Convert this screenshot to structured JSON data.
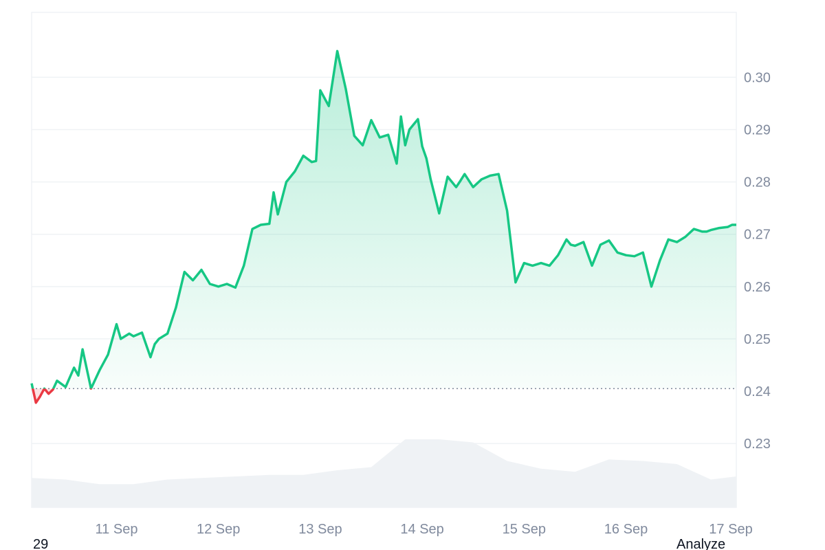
{
  "footer": {
    "left_text": "29",
    "analyze_label": "Analyze"
  },
  "colors": {
    "up_line": "#16c784",
    "down_line": "#ea3943",
    "grid": "#eff2f5",
    "axis_text": "#808a9d",
    "volume": "#eff2f5",
    "baseline": "#808a9d"
  },
  "chart_data": {
    "type": "area",
    "title": "",
    "xlabel": "",
    "ylabel": "",
    "x_tick_labels": [
      "11 Sep",
      "12 Sep",
      "13 Sep",
      "14 Sep",
      "15 Sep",
      "16 Sep",
      "17 Sep"
    ],
    "y_tick_labels": [
      "0.30",
      "0.29",
      "0.28",
      "0.27",
      "0.26",
      "0.25",
      "0.24",
      "0.23"
    ],
    "ylim": [
      0.2178,
      0.3124
    ],
    "xlim": [
      "2024-09-10T04:00",
      "2024-09-17T02:00"
    ],
    "grid": true,
    "baseline_value": 0.2405,
    "price_series": {
      "x": [
        "2024-09-10T04:00",
        "2024-09-10T05:00",
        "2024-09-10T06:00",
        "2024-09-10T07:00",
        "2024-09-10T08:00",
        "2024-09-10T09:00",
        "2024-09-10T10:00",
        "2024-09-10T12:00",
        "2024-09-10T14:00",
        "2024-09-10T15:00",
        "2024-09-10T16:00",
        "2024-09-10T18:00",
        "2024-09-10T20:00",
        "2024-09-10T22:00",
        "2024-09-11T00:00",
        "2024-09-11T01:00",
        "2024-09-11T03:00",
        "2024-09-11T04:00",
        "2024-09-11T06:00",
        "2024-09-11T08:00",
        "2024-09-11T09:00",
        "2024-09-11T10:00",
        "2024-09-11T12:00",
        "2024-09-11T14:00",
        "2024-09-11T16:00",
        "2024-09-11T18:00",
        "2024-09-11T19:00",
        "2024-09-11T20:00",
        "2024-09-11T22:00",
        "2024-09-12T00:00",
        "2024-09-12T02:00",
        "2024-09-12T04:00",
        "2024-09-12T06:00",
        "2024-09-12T08:00",
        "2024-09-12T10:00",
        "2024-09-12T12:00",
        "2024-09-12T13:00",
        "2024-09-12T14:00",
        "2024-09-12T16:00",
        "2024-09-12T18:00",
        "2024-09-12T20:00",
        "2024-09-12T22:00",
        "2024-09-12T23:00",
        "2024-09-13T00:00",
        "2024-09-13T02:00",
        "2024-09-13T04:00",
        "2024-09-13T06:00",
        "2024-09-13T08:00",
        "2024-09-13T10:00",
        "2024-09-13T12:00",
        "2024-09-13T14:00",
        "2024-09-13T16:00",
        "2024-09-13T18:00",
        "2024-09-13T19:00",
        "2024-09-13T20:00",
        "2024-09-13T21:00",
        "2024-09-13T22:00",
        "2024-09-13T23:00",
        "2024-09-14T00:00",
        "2024-09-14T01:00",
        "2024-09-14T02:00",
        "2024-09-14T04:00",
        "2024-09-14T06:00",
        "2024-09-14T08:00",
        "2024-09-14T09:00",
        "2024-09-14T10:00",
        "2024-09-14T12:00",
        "2024-09-14T14:00",
        "2024-09-14T16:00",
        "2024-09-14T18:00",
        "2024-09-14T20:00",
        "2024-09-14T22:00",
        "2024-09-15T00:00",
        "2024-09-15T02:00",
        "2024-09-15T04:00",
        "2024-09-15T06:00",
        "2024-09-15T08:00",
        "2024-09-15T10:00",
        "2024-09-15T11:00",
        "2024-09-15T12:00",
        "2024-09-15T14:00",
        "2024-09-15T16:00",
        "2024-09-15T18:00",
        "2024-09-15T20:00",
        "2024-09-15T22:00",
        "2024-09-16T00:00",
        "2024-09-16T02:00",
        "2024-09-16T04:00",
        "2024-09-16T06:00",
        "2024-09-16T08:00",
        "2024-09-16T10:00",
        "2024-09-16T12:00",
        "2024-09-16T14:00",
        "2024-09-16T16:00",
        "2024-09-16T18:00",
        "2024-09-16T19:00",
        "2024-09-16T20:00",
        "2024-09-16T22:00",
        "2024-09-17T00:00",
        "2024-09-17T01:00",
        "2024-09-17T02:00"
      ],
      "y": [
        0.2415,
        0.2378,
        0.239,
        0.2405,
        0.2395,
        0.2403,
        0.242,
        0.2408,
        0.2445,
        0.243,
        0.248,
        0.2405,
        0.244,
        0.247,
        0.2528,
        0.25,
        0.251,
        0.2505,
        0.2512,
        0.2465,
        0.249,
        0.25,
        0.251,
        0.256,
        0.2628,
        0.2612,
        0.2622,
        0.2632,
        0.2605,
        0.26,
        0.2605,
        0.2598,
        0.264,
        0.271,
        0.2718,
        0.272,
        0.278,
        0.2738,
        0.28,
        0.282,
        0.285,
        0.2838,
        0.284,
        0.2975,
        0.2945,
        0.305,
        0.2978,
        0.2888,
        0.287,
        0.2918,
        0.2885,
        0.289,
        0.2835,
        0.2925,
        0.287,
        0.29,
        0.291,
        0.292,
        0.2868,
        0.2845,
        0.2805,
        0.274,
        0.281,
        0.279,
        0.2802,
        0.2815,
        0.279,
        0.2805,
        0.2812,
        0.2815,
        0.2745,
        0.2608,
        0.2645,
        0.264,
        0.2645,
        0.264,
        0.266,
        0.269,
        0.268,
        0.2678,
        0.2685,
        0.264,
        0.268,
        0.2688,
        0.2665,
        0.266,
        0.2658,
        0.2665,
        0.26,
        0.265,
        0.269,
        0.2685,
        0.2695,
        0.271,
        0.2705,
        0.2705,
        0.2708,
        0.2712,
        0.2714,
        0.2718,
        0.2718
      ]
    },
    "volume_series": {
      "x": [
        "2024-09-10T04:00",
        "2024-09-10T12:00",
        "2024-09-10T20:00",
        "2024-09-11T04:00",
        "2024-09-11T12:00",
        "2024-09-11T20:00",
        "2024-09-12T04:00",
        "2024-09-12T12:00",
        "2024-09-12T20:00",
        "2024-09-13T04:00",
        "2024-09-13T12:00",
        "2024-09-13T20:00",
        "2024-09-14T04:00",
        "2024-09-14T12:00",
        "2024-09-14T20:00",
        "2024-09-15T04:00",
        "2024-09-15T12:00",
        "2024-09-15T20:00",
        "2024-09-16T04:00",
        "2024-09-16T12:00",
        "2024-09-16T20:00",
        "2024-09-17T02:00"
      ],
      "y": [
        1.9,
        1.8,
        1.5,
        1.5,
        1.8,
        1.9,
        2.0,
        2.1,
        2.1,
        2.4,
        2.6,
        4.4,
        4.4,
        4.2,
        3.0,
        2.5,
        2.3,
        3.1,
        3.0,
        2.8,
        1.8,
        2.0
      ]
    }
  }
}
